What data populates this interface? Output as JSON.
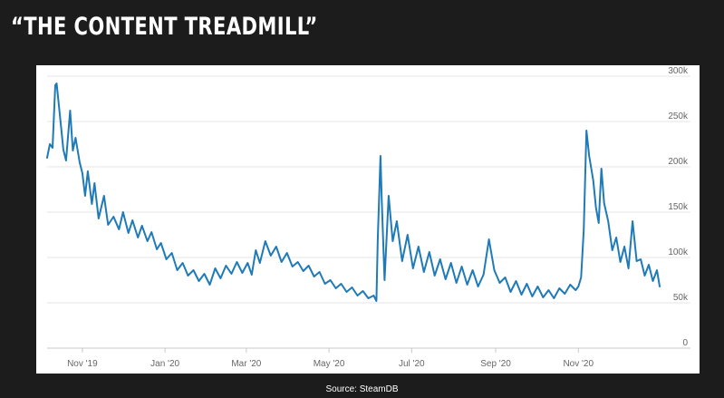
{
  "slide": {
    "title": "“THE CONTENT TREADMILL”",
    "source": "Source: SteamDB"
  },
  "chart_data": {
    "type": "line",
    "title": "",
    "xlabel": "",
    "ylabel": "",
    "ylim": [
      0,
      300000
    ],
    "y_ticks": [
      0,
      50000,
      100000,
      150000,
      200000,
      250000,
      300000
    ],
    "y_tick_labels": [
      "0",
      "50k",
      "100k",
      "150k",
      "200k",
      "250k",
      "300k"
    ],
    "xlim": [
      "2019-10-06",
      "2020-12-31"
    ],
    "x_ticks": [
      "2019-11-01",
      "2020-01-01",
      "2020-03-01",
      "2020-05-01",
      "2020-07-01",
      "2020-09-01",
      "2020-11-01"
    ],
    "x_tick_labels": [
      "Nov '19",
      "Jan '20",
      "Mar '20",
      "May '20",
      "Jul '20",
      "Sep '20",
      "Nov '20"
    ],
    "grid": true,
    "line_color": "#1f7ab8",
    "series": [
      {
        "x": [
          "2019-10-06",
          "2019-10-08",
          "2019-10-10",
          "2019-10-12",
          "2019-10-13",
          "2019-10-16",
          "2019-10-18",
          "2019-10-20",
          "2019-10-23",
          "2019-10-25",
          "2019-10-27",
          "2019-10-30",
          "2019-11-01",
          "2019-11-03",
          "2019-11-05",
          "2019-11-08",
          "2019-11-10",
          "2019-11-13",
          "2019-11-17",
          "2019-11-20",
          "2019-11-24",
          "2019-11-28",
          "2019-12-01",
          "2019-12-05",
          "2019-12-08",
          "2019-12-12",
          "2019-12-15",
          "2019-12-19",
          "2019-12-22",
          "2019-12-26",
          "2019-12-29",
          "2020-01-02",
          "2020-01-06",
          "2020-01-10",
          "2020-01-14",
          "2020-01-18",
          "2020-01-22",
          "2020-01-26",
          "2020-01-30",
          "2020-02-03",
          "2020-02-07",
          "2020-02-11",
          "2020-02-15",
          "2020-02-19",
          "2020-02-23",
          "2020-02-27",
          "2020-03-02",
          "2020-03-05",
          "2020-03-08",
          "2020-03-11",
          "2020-03-15",
          "2020-03-19",
          "2020-03-23",
          "2020-03-27",
          "2020-03-31",
          "2020-04-04",
          "2020-04-08",
          "2020-04-12",
          "2020-04-16",
          "2020-04-20",
          "2020-04-24",
          "2020-04-28",
          "2020-05-02",
          "2020-05-06",
          "2020-05-10",
          "2020-05-14",
          "2020-05-18",
          "2020-05-22",
          "2020-05-26",
          "2020-05-30",
          "2020-06-03",
          "2020-06-05",
          "2020-06-06",
          "2020-06-08",
          "2020-06-09",
          "2020-06-11",
          "2020-06-14",
          "2020-06-17",
          "2020-06-20",
          "2020-06-24",
          "2020-06-28",
          "2020-07-02",
          "2020-07-06",
          "2020-07-10",
          "2020-07-14",
          "2020-07-18",
          "2020-07-22",
          "2020-07-26",
          "2020-07-30",
          "2020-08-03",
          "2020-08-07",
          "2020-08-11",
          "2020-08-15",
          "2020-08-19",
          "2020-08-23",
          "2020-08-27",
          "2020-08-31",
          "2020-09-04",
          "2020-09-08",
          "2020-09-12",
          "2020-09-16",
          "2020-09-20",
          "2020-09-24",
          "2020-09-28",
          "2020-10-02",
          "2020-10-06",
          "2020-10-10",
          "2020-10-14",
          "2020-10-18",
          "2020-10-22",
          "2020-10-26",
          "2020-10-30",
          "2020-11-01",
          "2020-11-03",
          "2020-11-05",
          "2020-11-07",
          "2020-11-09",
          "2020-11-12",
          "2020-11-14",
          "2020-11-16",
          "2020-11-18",
          "2020-11-20",
          "2020-11-23",
          "2020-11-26",
          "2020-11-29",
          "2020-12-02",
          "2020-12-05",
          "2020-12-08",
          "2020-12-11",
          "2020-12-14",
          "2020-12-17",
          "2020-12-20",
          "2020-12-23",
          "2020-12-26",
          "2020-12-29",
          "2020-12-31"
        ],
        "y": [
          210000,
          225000,
          221000,
          290000,
          292000,
          248000,
          219000,
          207000,
          262000,
          218000,
          232000,
          205000,
          193000,
          168000,
          195000,
          159000,
          182000,
          143000,
          168000,
          136000,
          145000,
          131000,
          150000,
          127000,
          141000,
          122000,
          135000,
          118000,
          128000,
          109000,
          116000,
          98000,
          105000,
          86000,
          94000,
          80000,
          86000,
          74000,
          82000,
          70000,
          88000,
          77000,
          91000,
          82000,
          95000,
          83000,
          94000,
          81000,
          108000,
          94000,
          118000,
          102000,
          112000,
          95000,
          105000,
          90000,
          95000,
          85000,
          91000,
          79000,
          84000,
          71000,
          75000,
          66000,
          71000,
          62000,
          67000,
          58000,
          63000,
          55000,
          58000,
          52000,
          120000,
          212000,
          160000,
          75000,
          168000,
          118000,
          140000,
          96000,
          125000,
          88000,
          112000,
          84000,
          106000,
          80000,
          98000,
          76000,
          94000,
          72000,
          90000,
          70000,
          86000,
          68000,
          81000,
          120000,
          86000,
          72000,
          78000,
          62000,
          74000,
          59000,
          71000,
          57000,
          68000,
          56000,
          64000,
          55000,
          66000,
          60000,
          70000,
          64000,
          68000,
          78000,
          130000,
          240000,
          212000,
          185000,
          155000,
          138000,
          198000,
          160000,
          140000,
          108000,
          122000,
          95000,
          112000,
          88000,
          140000,
          96000,
          98000,
          80000,
          92000,
          74000,
          86000,
          68000
        ]
      }
    ]
  }
}
